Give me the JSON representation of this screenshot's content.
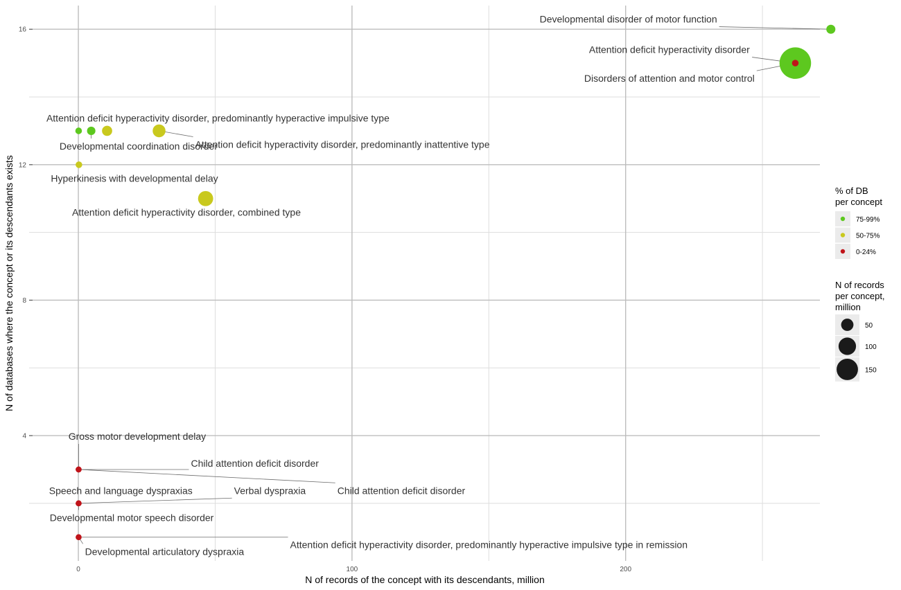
{
  "chart_data": {
    "type": "scatter",
    "xlabel": "N of records of the concept with its descendants, million",
    "ylabel": "N of databases where the concept or its descendants exists",
    "xlim": [
      -18,
      271
    ],
    "ylim": [
      0.3,
      16.7
    ],
    "x_ticks": [
      {
        "value": 0,
        "label": "0"
      },
      {
        "value": 100,
        "label": "100"
      },
      {
        "value": 200,
        "label": "200"
      }
    ],
    "y_ticks": [
      {
        "value": 4,
        "label": "4"
      },
      {
        "value": 8,
        "label": "8"
      },
      {
        "value": 12,
        "label": "12"
      },
      {
        "value": 16,
        "label": "16"
      }
    ],
    "x_minor_grid": [
      50,
      150,
      250
    ],
    "y_minor_grid": [
      2,
      6,
      10,
      14
    ],
    "grid": true,
    "colors": {
      "75-99%": "#5dc81f",
      "50-75%": "#c9c91e",
      "0-24%": "#c0141a"
    },
    "points": [
      {
        "name": "Developmental disorder of motor function",
        "x": 275,
        "y": 16,
        "size": 8,
        "group": "75-99%"
      },
      {
        "name": "Attention deficit hyperactivity disorder",
        "x": 262,
        "y": 15,
        "size": 250,
        "group": "75-99%"
      },
      {
        "name": "Disorders of attention and motor control",
        "x": 262,
        "y": 15,
        "size": 2,
        "group": "0-24%"
      },
      {
        "name": "Attention deficit hyperactivity disorder, predominantly hyperactive impulsive type",
        "x": 10.5,
        "y": 13,
        "size": 12,
        "group": "50-75%"
      },
      {
        "name": "Developmental coordination disorder",
        "x": 4.7,
        "y": 13,
        "size": 6,
        "group": "75-99%"
      },
      {
        "name": "",
        "x": 0.1,
        "y": 13,
        "size": 2,
        "group": "75-99%"
      },
      {
        "name": "Attention deficit hyperactivity disorder, predominantly inattentive type",
        "x": 29.5,
        "y": 13,
        "size": 25,
        "group": "50-75%"
      },
      {
        "name": "Hyperkinesis with developmental delay",
        "x": 0.2,
        "y": 12,
        "size": 2,
        "group": "50-75%"
      },
      {
        "name": "Attention deficit hyperactivity disorder, combined type",
        "x": 46.5,
        "y": 11,
        "size": 40,
        "group": "50-75%"
      },
      {
        "name": "Gross motor development delay",
        "x": 0.1,
        "y": 3,
        "size": 1,
        "group": "0-24%"
      },
      {
        "name": "Child attention deficit disorder",
        "x": 0.1,
        "y": 3,
        "size": 1,
        "group": "0-24%"
      },
      {
        "name": "Child attention deficit disorder",
        "x": 0.1,
        "y": 3,
        "size": 1,
        "group": "0-24%"
      },
      {
        "name": "Speech and language dyspraxias",
        "x": 0.1,
        "y": 2,
        "size": 1,
        "group": "0-24%"
      },
      {
        "name": "Verbal dyspraxia",
        "x": 0.1,
        "y": 2,
        "size": 1,
        "group": "0-24%"
      },
      {
        "name": "Developmental motor speech disorder",
        "x": 0.1,
        "y": 2,
        "size": 1,
        "group": "0-24%"
      },
      {
        "name": "Attention deficit hyperactivity disorder, predominantly hyperactive impulsive type in remission",
        "x": 0.1,
        "y": 1,
        "size": 1,
        "group": "0-24%"
      },
      {
        "name": "Developmental articulatory dyspraxia",
        "x": 0.1,
        "y": 1,
        "size": 1,
        "group": "0-24%"
      }
    ],
    "labels": [
      {
        "text": "Developmental disorder of motor function",
        "point": 0,
        "lx": 201,
        "ly": 16.3,
        "anchor": "middle"
      },
      {
        "text": "Attention deficit hyperactivity disorder",
        "point": 1,
        "lx": 216,
        "ly": 15.4,
        "anchor": "middle"
      },
      {
        "text": "Disorders of attention and motor control",
        "point": 2,
        "lx": 216,
        "ly": 14.55,
        "anchor": "middle"
      },
      {
        "text": "Attention deficit hyperactivity disorder, predominantly hyperactive impulsive type",
        "point": 3,
        "lx": 51,
        "ly": 13.38,
        "anchor": "middle"
      },
      {
        "text": "Developmental coordination disorder",
        "point": 4,
        "lx": 22,
        "ly": 12.55,
        "anchor": "middle"
      },
      {
        "text": "Attention deficit hyperactivity disorder, predominantly inattentive type",
        "point": 6,
        "lx": 96.5,
        "ly": 12.6,
        "anchor": "middle"
      },
      {
        "text": "Hyperkinesis with developmental delay",
        "point": 7,
        "lx": 20.5,
        "ly": 11.6,
        "anchor": "middle"
      },
      {
        "text": "Attention deficit hyperactivity disorder, combined type",
        "point": 8,
        "lx": 39.5,
        "ly": 10.6,
        "anchor": "middle"
      },
      {
        "text": "Gross motor development delay",
        "point": 9,
        "lx": 21.5,
        "ly": 3.98,
        "anchor": "middle"
      },
      {
        "text": "Child attention deficit disorder",
        "point": 10,
        "lx": 64.5,
        "ly": 3.18,
        "anchor": "middle"
      },
      {
        "text": "Child attention deficit disorder",
        "point": 11,
        "lx": 118,
        "ly": 2.38,
        "anchor": "middle"
      },
      {
        "text": "Speech and language dyspraxias",
        "point": 12,
        "lx": 15.5,
        "ly": 2.38,
        "anchor": "middle"
      },
      {
        "text": "Verbal dyspraxia",
        "point": 13,
        "lx": 70,
        "ly": 2.38,
        "anchor": "middle"
      },
      {
        "text": "Developmental motor speech disorder",
        "point": 14,
        "lx": 19.5,
        "ly": 1.58,
        "anchor": "middle"
      },
      {
        "text": "Attention deficit hyperactivity disorder, predominantly hyperactive impulsive type in remission",
        "point": 15,
        "lx": 150,
        "ly": 0.78,
        "anchor": "middle"
      },
      {
        "text": "Developmental articulatory dyspraxia",
        "point": 16,
        "lx": 31.5,
        "ly": 0.58,
        "anchor": "middle"
      }
    ],
    "legend": {
      "placement": "right",
      "color_title_lines": [
        "% of DB",
        "per concept"
      ],
      "color_items": [
        {
          "label": "75-99%",
          "color": "#5dc81f"
        },
        {
          "label": "50-75%",
          "color": "#c9c91e"
        },
        {
          "label": "0-24%",
          "color": "#c0141a"
        }
      ],
      "size_title_lines": [
        "N of records",
        "per concept,",
        "million"
      ],
      "size_items": [
        {
          "label": "50",
          "value": 50
        },
        {
          "label": "100",
          "value": 100
        },
        {
          "label": "150",
          "value": 150
        }
      ]
    }
  }
}
